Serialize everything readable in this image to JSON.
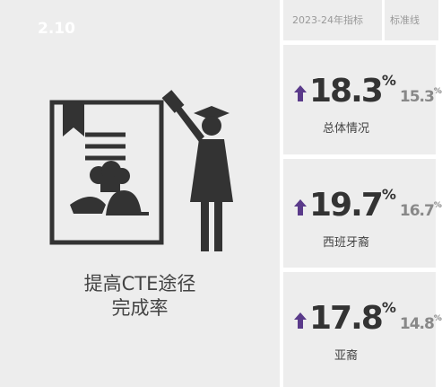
{
  "header": {
    "index": "2.10",
    "title_lines": [
      "提高CTE途径",
      "完成率"
    ]
  },
  "table": {
    "columns": [
      "2023-24年指标",
      "标准线"
    ],
    "metrics": [
      {
        "value": "18.3",
        "value_unit": "%",
        "baseline": "15.3",
        "baseline_unit": "%",
        "label": "总体情况"
      },
      {
        "value": "19.7",
        "value_unit": "%",
        "baseline": "16.7",
        "baseline_unit": "%",
        "label": "西班牙裔"
      },
      {
        "value": "17.8",
        "value_unit": "%",
        "baseline": "14.8",
        "baseline_unit": "%",
        "label": "亚裔"
      }
    ]
  }
}
